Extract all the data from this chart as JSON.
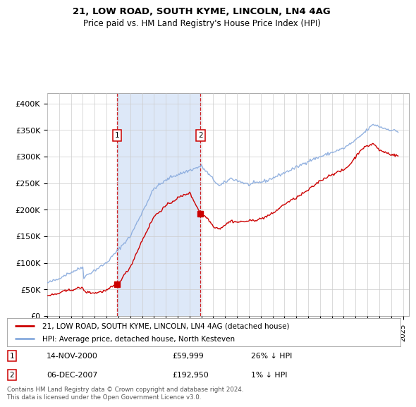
{
  "title": "21, LOW ROAD, SOUTH KYME, LINCOLN, LN4 4AG",
  "subtitle": "Price paid vs. HM Land Registry's House Price Index (HPI)",
  "ylabel_ticks": [
    "£0",
    "£50K",
    "£100K",
    "£150K",
    "£200K",
    "£250K",
    "£300K",
    "£350K",
    "£400K"
  ],
  "ytick_values": [
    0,
    50000,
    100000,
    150000,
    200000,
    250000,
    300000,
    350000,
    400000
  ],
  "ylim": [
    0,
    420000
  ],
  "xlim_start": 1995.0,
  "xlim_end": 2025.5,
  "background_color": "#eef2fb",
  "sale1_date": 2000.87,
  "sale1_price": 59999,
  "sale2_date": 2007.92,
  "sale2_price": 192950,
  "legend_line1": "21, LOW ROAD, SOUTH KYME, LINCOLN, LN4 4AG (detached house)",
  "legend_line2": "HPI: Average price, detached house, North Kesteven",
  "footnote": "Contains HM Land Registry data © Crown copyright and database right 2024.\nThis data is licensed under the Open Government Licence v3.0.",
  "sale_color": "#cc0000",
  "hpi_color": "#88aadd",
  "vline_color": "#cc0000",
  "grid_color": "#cccccc",
  "shade_color": "#dde8f8"
}
